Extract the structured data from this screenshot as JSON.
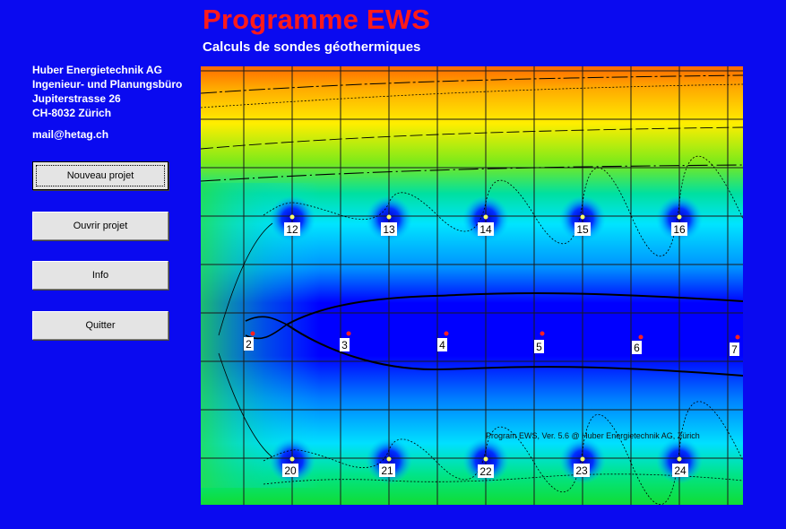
{
  "header": {
    "title": "Programme EWS",
    "subtitle": "Calculs de sondes géothermiques"
  },
  "company": {
    "lines": [
      "Huber Energietechnik AG",
      "Ingenieur- und Planungsbüro",
      "Jupiterstrasse 26",
      "CH-8032 Zürich"
    ],
    "mail": "mail@hetag.ch"
  },
  "buttons": {
    "new_project": "Nouveau projet",
    "open_project": "Ouvrir projet",
    "info": "Info",
    "quit": "Quitter"
  },
  "plot": {
    "copyright": "Program EWS, Ver. 5.6  @ Huber Energietechnik AG, Zürich",
    "top_row_labels": [
      "12",
      "13",
      "14",
      "15",
      "16"
    ],
    "middle_row_labels": [
      "2",
      "3",
      "4",
      "5",
      "6",
      "7"
    ],
    "bottom_row_labels": [
      "20",
      "21",
      "22",
      "23",
      "24"
    ],
    "colors": {
      "warm": "#ff6600",
      "yellow": "#ffee00",
      "green": "#22dd44",
      "cyan": "#00e8ff",
      "blue": "#0000ff",
      "probe_marker_top": "#ffff66",
      "probe_marker_middle": "#ff2020"
    }
  }
}
